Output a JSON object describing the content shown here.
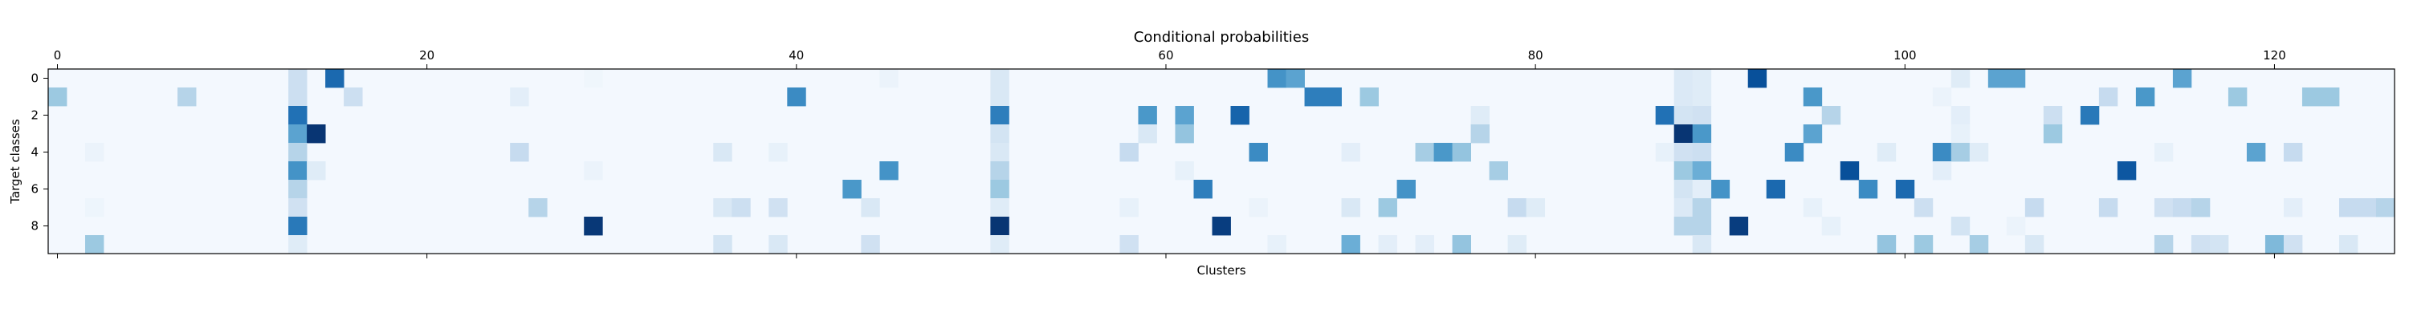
{
  "chart_data": {
    "type": "heatmap",
    "title": "Conditional probabilities",
    "xlabel": "Clusters",
    "ylabel": "Target classes",
    "n_cols": 127,
    "n_rows": 10,
    "x_ticks": [
      0,
      20,
      40,
      60,
      80,
      100,
      120
    ],
    "x_tick_labels": [
      "0",
      "20",
      "40",
      "60",
      "80",
      "100",
      "120"
    ],
    "x_tick_position": "top",
    "y_ticks": [
      0,
      2,
      4,
      6,
      8
    ],
    "y_tick_labels": [
      "0",
      "2",
      "4",
      "6",
      "8"
    ],
    "colormap": "Blues",
    "value_range": [
      0,
      1
    ],
    "grid": false,
    "background_value": 0.02,
    "cells": [
      [
        0,
        13,
        0.22
      ],
      [
        0,
        15,
        0.78
      ],
      [
        0,
        29,
        0.04
      ],
      [
        0,
        40,
        0.02
      ],
      [
        0,
        45,
        0.06
      ],
      [
        0,
        51,
        0.15
      ],
      [
        0,
        66,
        0.62
      ],
      [
        0,
        67,
        0.55
      ],
      [
        0,
        88,
        0.14
      ],
      [
        0,
        89,
        0.12
      ],
      [
        0,
        92,
        0.88
      ],
      [
        0,
        103,
        0.12
      ],
      [
        0,
        105,
        0.55
      ],
      [
        0,
        106,
        0.55
      ],
      [
        0,
        115,
        0.55
      ],
      [
        1,
        0,
        0.38
      ],
      [
        1,
        7,
        0.3
      ],
      [
        1,
        13,
        0.22
      ],
      [
        1,
        16,
        0.22
      ],
      [
        1,
        25,
        0.1
      ],
      [
        1,
        40,
        0.65
      ],
      [
        1,
        51,
        0.15
      ],
      [
        1,
        68,
        0.7
      ],
      [
        1,
        69,
        0.7
      ],
      [
        1,
        71,
        0.38
      ],
      [
        1,
        88,
        0.14
      ],
      [
        1,
        89,
        0.12
      ],
      [
        1,
        95,
        0.6
      ],
      [
        1,
        102,
        0.06
      ],
      [
        1,
        111,
        0.25
      ],
      [
        1,
        113,
        0.6
      ],
      [
        1,
        118,
        0.38
      ],
      [
        1,
        122,
        0.38
      ],
      [
        1,
        123,
        0.38
      ],
      [
        2,
        13,
        0.75
      ],
      [
        2,
        51,
        0.7
      ],
      [
        2,
        59,
        0.6
      ],
      [
        2,
        61,
        0.55
      ],
      [
        2,
        64,
        0.8
      ],
      [
        2,
        87,
        0.75
      ],
      [
        2,
        88,
        0.18
      ],
      [
        2,
        89,
        0.2
      ],
      [
        2,
        96,
        0.3
      ],
      [
        2,
        103,
        0.1
      ],
      [
        2,
        108,
        0.22
      ],
      [
        2,
        110,
        0.72
      ],
      [
        2,
        77,
        0.12
      ],
      [
        3,
        13,
        0.55
      ],
      [
        3,
        14,
        0.98
      ],
      [
        3,
        51,
        0.18
      ],
      [
        3,
        59,
        0.15
      ],
      [
        3,
        61,
        0.4
      ],
      [
        3,
        77,
        0.3
      ],
      [
        3,
        88,
        0.98
      ],
      [
        3,
        89,
        0.6
      ],
      [
        3,
        95,
        0.55
      ],
      [
        3,
        108,
        0.38
      ],
      [
        3,
        103,
        0.08
      ],
      [
        4,
        2,
        0.06
      ],
      [
        4,
        13,
        0.3
      ],
      [
        4,
        25,
        0.25
      ],
      [
        4,
        36,
        0.15
      ],
      [
        4,
        39,
        0.08
      ],
      [
        4,
        51,
        0.15
      ],
      [
        4,
        58,
        0.25
      ],
      [
        4,
        65,
        0.65
      ],
      [
        4,
        70,
        0.1
      ],
      [
        4,
        74,
        0.35
      ],
      [
        4,
        75,
        0.6
      ],
      [
        4,
        76,
        0.4
      ],
      [
        4,
        87,
        0.08
      ],
      [
        4,
        88,
        0.2
      ],
      [
        4,
        89,
        0.22
      ],
      [
        4,
        94,
        0.65
      ],
      [
        4,
        99,
        0.12
      ],
      [
        4,
        102,
        0.65
      ],
      [
        4,
        103,
        0.35
      ],
      [
        4,
        104,
        0.12
      ],
      [
        4,
        114,
        0.08
      ],
      [
        4,
        119,
        0.55
      ],
      [
        4,
        121,
        0.25
      ],
      [
        5,
        13,
        0.62
      ],
      [
        5,
        14,
        0.12
      ],
      [
        5,
        29,
        0.06
      ],
      [
        5,
        45,
        0.62
      ],
      [
        5,
        51,
        0.3
      ],
      [
        5,
        61,
        0.08
      ],
      [
        5,
        78,
        0.35
      ],
      [
        5,
        88,
        0.38
      ],
      [
        5,
        89,
        0.5
      ],
      [
        5,
        97,
        0.88
      ],
      [
        5,
        112,
        0.85
      ],
      [
        5,
        102,
        0.1
      ],
      [
        6,
        13,
        0.3
      ],
      [
        6,
        43,
        0.6
      ],
      [
        6,
        51,
        0.38
      ],
      [
        6,
        62,
        0.7
      ],
      [
        6,
        73,
        0.62
      ],
      [
        6,
        88,
        0.18
      ],
      [
        6,
        90,
        0.62
      ],
      [
        6,
        93,
        0.78
      ],
      [
        6,
        98,
        0.65
      ],
      [
        6,
        100,
        0.78
      ],
      [
        6,
        89,
        0.1
      ],
      [
        7,
        2,
        0.05
      ],
      [
        7,
        13,
        0.2
      ],
      [
        7,
        26,
        0.3
      ],
      [
        7,
        36,
        0.15
      ],
      [
        7,
        37,
        0.22
      ],
      [
        7,
        39,
        0.2
      ],
      [
        7,
        44,
        0.15
      ],
      [
        7,
        51,
        0.12
      ],
      [
        7,
        58,
        0.08
      ],
      [
        7,
        65,
        0.06
      ],
      [
        7,
        70,
        0.15
      ],
      [
        7,
        72,
        0.38
      ],
      [
        7,
        79,
        0.25
      ],
      [
        7,
        80,
        0.12
      ],
      [
        7,
        88,
        0.14
      ],
      [
        7,
        89,
        0.3
      ],
      [
        7,
        95,
        0.08
      ],
      [
        7,
        101,
        0.22
      ],
      [
        7,
        107,
        0.25
      ],
      [
        7,
        111,
        0.25
      ],
      [
        7,
        114,
        0.2
      ],
      [
        7,
        115,
        0.25
      ],
      [
        7,
        116,
        0.3
      ],
      [
        7,
        121,
        0.1
      ],
      [
        7,
        124,
        0.25
      ],
      [
        7,
        125,
        0.25
      ],
      [
        7,
        126,
        0.3
      ],
      [
        8,
        13,
        0.72
      ],
      [
        8,
        29,
        0.97
      ],
      [
        8,
        51,
        0.98
      ],
      [
        8,
        63,
        0.95
      ],
      [
        8,
        88,
        0.3
      ],
      [
        8,
        89,
        0.3
      ],
      [
        8,
        91,
        0.95
      ],
      [
        8,
        96,
        0.08
      ],
      [
        8,
        103,
        0.18
      ],
      [
        8,
        106,
        0.06
      ],
      [
        9,
        2,
        0.38
      ],
      [
        9,
        13,
        0.12
      ],
      [
        9,
        36,
        0.18
      ],
      [
        9,
        39,
        0.15
      ],
      [
        9,
        44,
        0.2
      ],
      [
        9,
        51,
        0.12
      ],
      [
        9,
        58,
        0.2
      ],
      [
        9,
        66,
        0.08
      ],
      [
        9,
        70,
        0.5
      ],
      [
        9,
        72,
        0.1
      ],
      [
        9,
        74,
        0.1
      ],
      [
        9,
        76,
        0.4
      ],
      [
        9,
        79,
        0.12
      ],
      [
        9,
        89,
        0.15
      ],
      [
        9,
        99,
        0.4
      ],
      [
        9,
        101,
        0.38
      ],
      [
        9,
        104,
        0.35
      ],
      [
        9,
        107,
        0.15
      ],
      [
        9,
        114,
        0.3
      ],
      [
        9,
        116,
        0.2
      ],
      [
        9,
        117,
        0.18
      ],
      [
        9,
        120,
        0.45
      ],
      [
        9,
        121,
        0.2
      ],
      [
        9,
        124,
        0.15
      ]
    ]
  }
}
